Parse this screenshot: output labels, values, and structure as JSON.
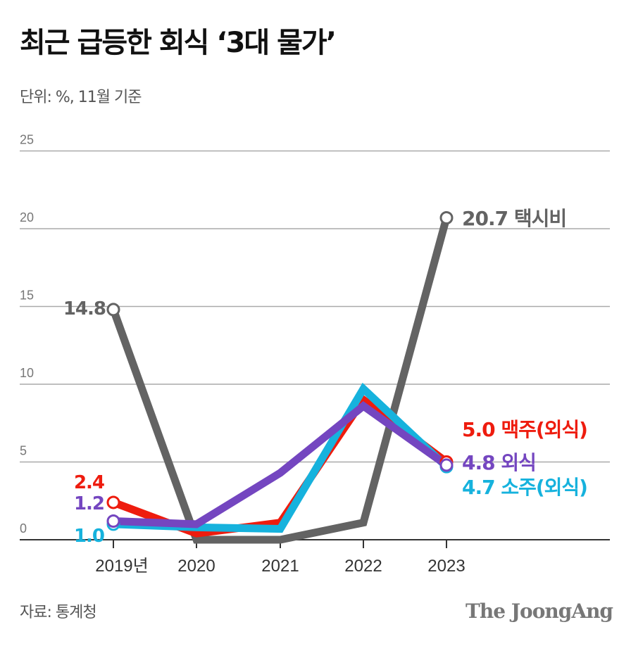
{
  "header": {
    "title": "최근 급등한 회식 ‘3대 물가’",
    "subtitle": "단위: %, 11월 기준"
  },
  "footer": {
    "source": "자료: 통계청",
    "logo": "The JoongAng"
  },
  "chart_data": {
    "type": "line",
    "title": "최근 급등한 회식 ‘3대 물가’",
    "ylabel": "단위: %, 11월 기준",
    "categories": [
      "2019년",
      "2020",
      "2021",
      "2022",
      "2023"
    ],
    "ylim": [
      0,
      25
    ],
    "yticks": [
      0,
      5,
      10,
      15,
      20,
      25
    ],
    "grid": true,
    "series": [
      {
        "name": "택시비",
        "color": "#636363",
        "values": [
          14.8,
          0.0,
          0.0,
          1.1,
          20.7
        ],
        "start_label": "14.8",
        "end_label": "20.7 택시비"
      },
      {
        "name": "맥주(외식)",
        "color": "#ee1c0e",
        "values": [
          2.4,
          0.4,
          1.1,
          9.0,
          5.0
        ],
        "start_label": "2.4",
        "end_label": "5.0 맥주(외식)"
      },
      {
        "name": "소주(외식)",
        "color": "#16b2dd",
        "values": [
          1.0,
          0.8,
          0.7,
          9.7,
          4.7
        ],
        "start_label": "1.0",
        "end_label": "4.7 소주(외식)"
      },
      {
        "name": "외식",
        "color": "#7446c0",
        "values": [
          1.2,
          1.0,
          4.3,
          8.6,
          4.8
        ],
        "start_label": "1.2",
        "end_label": "4.8 외식"
      }
    ]
  }
}
